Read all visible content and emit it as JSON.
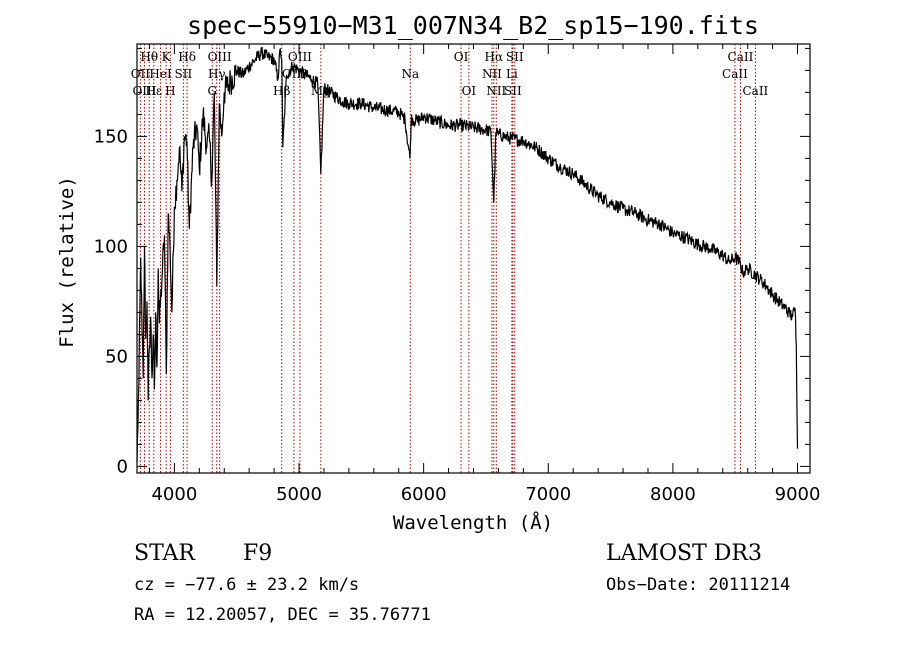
{
  "chart_data": {
    "type": "line",
    "title": "spec−55910−M31_007N34_B2_sp15−190.fits",
    "xlabel": "Wavelength (Å)",
    "ylabel": "Flux (relative)",
    "xlim": [
      3700,
      9100
    ],
    "ylim": [
      -3,
      192
    ],
    "xticks": [
      4000,
      5000,
      6000,
      7000,
      8000,
      9000
    ],
    "yticks": [
      0,
      50,
      100,
      150
    ],
    "series": [
      {
        "name": "spectrum",
        "x": [
          3700,
          3715,
          3730,
          3740,
          3750,
          3760,
          3770,
          3780,
          3790,
          3800,
          3810,
          3820,
          3830,
          3840,
          3850,
          3860,
          3870,
          3880,
          3900,
          3920,
          3935,
          3950,
          3965,
          3980,
          4000,
          4020,
          4040,
          4060,
          4080,
          4100,
          4120,
          4150,
          4180,
          4200,
          4230,
          4260,
          4280,
          4300,
          4320,
          4340,
          4360,
          4380,
          4400,
          4450,
          4500,
          4550,
          4600,
          4650,
          4700,
          4750,
          4800,
          4830,
          4850,
          4861,
          4870,
          4900,
          4950,
          5000,
          5050,
          5100,
          5150,
          5175,
          5200,
          5250,
          5300,
          5350,
          5400,
          5500,
          5600,
          5700,
          5800,
          5850,
          5890,
          5900,
          5950,
          6000,
          6100,
          6200,
          6300,
          6400,
          6500,
          6540,
          6563,
          6580,
          6600,
          6650,
          6700,
          6800,
          6900,
          7000,
          7100,
          7200,
          7300,
          7400,
          7500,
          7600,
          7700,
          7800,
          7900,
          8000,
          8100,
          8200,
          8300,
          8400,
          8450,
          8500,
          8542,
          8560,
          8600,
          8662,
          8700,
          8750,
          8800,
          8850,
          8900,
          8930,
          8960,
          8980,
          8990,
          9000
        ],
        "values": [
          2,
          38,
          95,
          62,
          40,
          100,
          58,
          75,
          30,
          55,
          68,
          40,
          60,
          35,
          70,
          45,
          90,
          65,
          85,
          105,
          42,
          115,
          100,
          70,
          118,
          130,
          145,
          125,
          150,
          148,
          108,
          145,
          155,
          135,
          160,
          145,
          150,
          130,
          170,
          82,
          165,
          150,
          170,
          175,
          180,
          178,
          182,
          185,
          188,
          186,
          185,
          176,
          190,
          185,
          145,
          178,
          182,
          180,
          178,
          176,
          174,
          133,
          172,
          170,
          168,
          166,
          165,
          165,
          163,
          162,
          161,
          158,
          140,
          158,
          157,
          159,
          157,
          155,
          155,
          154,
          153,
          152,
          120,
          152,
          151,
          150,
          149,
          148,
          145,
          140,
          136,
          133,
          128,
          123,
          120,
          117,
          115,
          112,
          110,
          106,
          104,
          101,
          99,
          96,
          93,
          95,
          92,
          88,
          90,
          87,
          85,
          82,
          78,
          75,
          72,
          70,
          68,
          72,
          55,
          8
        ],
        "color": "#000000"
      }
    ],
    "spectral_lines": [
      {
        "label": "Hθ",
        "x": 3798,
        "row": 0
      },
      {
        "label": "K",
        "x": 3934,
        "row": 0
      },
      {
        "label": "Hδ",
        "x": 4102,
        "row": 0
      },
      {
        "label": "OIII",
        "x": 4363,
        "row": 0
      },
      {
        "label": "OIII",
        "x": 5007,
        "row": 0
      },
      {
        "label": "OI",
        "x": 6300,
        "row": 0
      },
      {
        "label": "Hα",
        "x": 6563,
        "row": 0
      },
      {
        "label": "SII",
        "x": 6731,
        "row": 0
      },
      {
        "label": "CaII",
        "x": 8542,
        "row": 0
      },
      {
        "label": "OII",
        "x": 3727,
        "row": 1
      },
      {
        "label": "HeI",
        "x": 3889,
        "row": 1
      },
      {
        "label": "SII",
        "x": 4072,
        "row": 1
      },
      {
        "label": "Hγ",
        "x": 4340,
        "row": 1
      },
      {
        "label": "OIII",
        "x": 4959,
        "row": 1
      },
      {
        "label": "Na",
        "x": 5893,
        "row": 1
      },
      {
        "label": "NII",
        "x": 6548,
        "row": 1
      },
      {
        "label": "Li",
        "x": 6708,
        "row": 1
      },
      {
        "label": "CaII",
        "x": 8498,
        "row": 1
      },
      {
        "label": "OIII",
        "x": 3760,
        "row": 2
      },
      {
        "label": "Hε",
        "x": 3835,
        "row": 2
      },
      {
        "label": "H",
        "x": 3968,
        "row": 2
      },
      {
        "label": "G",
        "x": 4304,
        "row": 2
      },
      {
        "label": "Hβ",
        "x": 4861,
        "row": 2
      },
      {
        "label": "Mg",
        "x": 5175,
        "row": 2
      },
      {
        "label": "OI",
        "x": 6363,
        "row": 2
      },
      {
        "label": "NII",
        "x": 6583,
        "row": 2
      },
      {
        "label": "SII",
        "x": 6716,
        "row": 2
      },
      {
        "label": "CaII",
        "x": 8662,
        "row": 2
      }
    ]
  },
  "info": {
    "object_class": "STAR",
    "subclass": "F9",
    "survey": "LAMOST DR3",
    "redshift": "cz = −77.6 ± 23.2 km/s",
    "obs_date": "Obs−Date: 20111214",
    "coords": "RA =  12.20057, DEC =  35.76771"
  }
}
